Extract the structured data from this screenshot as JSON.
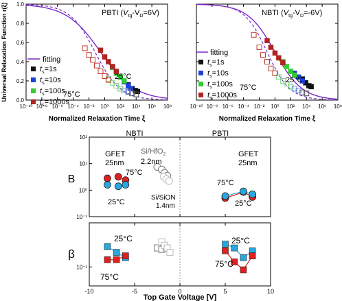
{
  "chart_data": [
    {
      "type": "scatter",
      "panel": "PBTI",
      "annotation_prefix": "PBTI (",
      "annotation_cond": "V",
      "annotation_sub1": "tg",
      "annotation_mid": "-V",
      "annotation_sub2": "D",
      "annotation_suffix": "=6V)",
      "xlabel": "Normalized Relaxation Time  ξ",
      "ylabel": "Universal Relaxation Function  r(ξ)",
      "xscale": "log",
      "xlim": [
        1e-10,
        100000000.0
      ],
      "ylim": [
        0.0,
        1.0
      ],
      "xticks": [
        "10⁻¹⁰",
        "10⁻⁸",
        "10⁻⁶",
        "10⁻⁴",
        "10⁻²",
        "10⁰",
        "10²",
        "10⁴",
        "10⁶",
        "10⁸"
      ],
      "yticks": [
        "0.0",
        "0.2",
        "0.4",
        "0.6",
        "0.8",
        "1.0"
      ],
      "temperature_labels": [
        "25°C",
        "75°C"
      ],
      "legend": {
        "placement": "center-left",
        "fitting_label": "fitting",
        "entries": [
          {
            "t": "t",
            "sub": "s",
            "rest": "=1s",
            "color": "#111111"
          },
          {
            "t": "t",
            "sub": "s",
            "rest": "=10s",
            "color": "#1f3fd9"
          },
          {
            "t": "t",
            "sub": "s",
            "rest": "=100s",
            "color": "#33cc33"
          },
          {
            "t": "t",
            "sub": "s",
            "rest": "=1000s",
            "color": "#b22222"
          }
        ]
      },
      "fit_solid": {
        "beta": 0.2,
        "xi_half": 0.3
      },
      "fit_dashed": {
        "beta": 0.27,
        "xi_half": 0.06
      },
      "series": [
        {
          "name": "25°C t=1s",
          "filled": true,
          "color": "#111111",
          "x": [
            1000,
            3000,
            8000,
            15000
          ],
          "y": [
            0.16,
            0.12,
            0.1,
            0.09
          ]
        },
        {
          "name": "25°C t=10s",
          "filled": true,
          "color": "#1f3fd9",
          "x": [
            100,
            300,
            1000,
            2000
          ],
          "y": [
            0.24,
            0.19,
            0.15,
            0.12
          ]
        },
        {
          "name": "25°C t=100s",
          "filled": true,
          "color": "#33cc33",
          "x": [
            10,
            30,
            100,
            300
          ],
          "y": [
            0.34,
            0.28,
            0.24,
            0.2
          ]
        },
        {
          "name": "25°C t=1000s",
          "filled": true,
          "color": "#b22222",
          "x": [
            0.3,
            1,
            3,
            10,
            30
          ],
          "y": [
            0.52,
            0.45,
            0.4,
            0.35,
            0.3
          ]
        },
        {
          "name": "75°C t=1s",
          "filled": false,
          "color": "#555555",
          "x": [
            1000,
            3000,
            10000
          ],
          "y": [
            0.09,
            0.07,
            0.06
          ]
        },
        {
          "name": "75°C t=10s",
          "filled": false,
          "color": "#6a8ae6",
          "x": [
            100,
            300,
            1000
          ],
          "y": [
            0.12,
            0.1,
            0.08
          ]
        },
        {
          "name": "75°C t=100s",
          "filled": false,
          "color": "#7bd97b",
          "x": [
            3,
            10,
            30,
            100
          ],
          "y": [
            0.22,
            0.18,
            0.15,
            0.12
          ]
        },
        {
          "name": "75°C t=1000s",
          "filled": false,
          "color": "#c0392b",
          "x": [
            0.003,
            0.01,
            0.03,
            0.1,
            0.3,
            1,
            3
          ],
          "y": [
            0.54,
            0.47,
            0.42,
            0.36,
            0.3,
            0.25,
            0.21
          ]
        }
      ]
    },
    {
      "type": "scatter",
      "panel": "NBTI",
      "annotation_prefix": "NBTI (",
      "annotation_cond": "V",
      "annotation_sub1": "tg",
      "annotation_mid": "-V",
      "annotation_sub2": "D",
      "annotation_suffix": "=-6V)",
      "xlabel": "Normalized Relaxation Time  ξ",
      "xscale": "log",
      "xlim": [
        1e-10,
        100000000.0
      ],
      "ylim": [
        0.0,
        1.0
      ],
      "xticks": [
        "10⁻¹⁰",
        "10⁻⁸",
        "10⁻⁶",
        "10⁻⁴",
        "10⁻²",
        "10⁰",
        "10²",
        "10⁴",
        "10⁶",
        "10⁸"
      ],
      "temperature_labels": [
        "25°C",
        "75°C"
      ],
      "legend": {
        "placement": "center-left",
        "fitting_label": "fitting",
        "entries": [
          {
            "t": "t",
            "sub": "s",
            "rest": "=1s",
            "color": "#111111"
          },
          {
            "t": "t",
            "sub": "s",
            "rest": "=10s",
            "color": "#1f3fd9"
          },
          {
            "t": "t",
            "sub": "s",
            "rest": "=100s",
            "color": "#33cc33"
          },
          {
            "t": "t",
            "sub": "s",
            "rest": "=1000s",
            "color": "#b22222"
          }
        ]
      },
      "fit_solid": {
        "beta": 0.25,
        "xi_half": 1.0
      },
      "fit_dashed": {
        "beta": 0.3,
        "xi_half": 0.1
      },
      "series": [
        {
          "name": "25°C t=1s",
          "filled": true,
          "color": "#111111",
          "x": [
            3000,
            8000,
            20000,
            40000
          ],
          "y": [
            0.22,
            0.18,
            0.15,
            0.14
          ]
        },
        {
          "name": "25°C t=10s",
          "filled": true,
          "color": "#1f3fd9",
          "x": [
            300,
            1000,
            3000
          ],
          "y": [
            0.28,
            0.24,
            0.2
          ]
        },
        {
          "name": "25°C t=100s",
          "filled": true,
          "color": "#33cc33",
          "x": [
            10,
            30,
            100,
            300
          ],
          "y": [
            0.4,
            0.35,
            0.3,
            0.26
          ]
        },
        {
          "name": "25°C t=1000s",
          "filled": true,
          "color": "#b22222",
          "x": [
            0.1,
            0.3,
            1,
            3,
            10
          ],
          "y": [
            0.62,
            0.55,
            0.49,
            0.44,
            0.39
          ]
        },
        {
          "name": "75°C t=1s",
          "filled": false,
          "color": "#555555",
          "x": [
            1000,
            3000,
            10000
          ],
          "y": [
            0.1,
            0.08,
            0.07
          ]
        },
        {
          "name": "75°C t=10s",
          "filled": false,
          "color": "#6a8ae6",
          "x": [
            100,
            300,
            1000
          ],
          "y": [
            0.14,
            0.12,
            0.1
          ]
        },
        {
          "name": "75°C t=100s",
          "filled": false,
          "color": "#7bd97b",
          "x": [
            3,
            10,
            30,
            100
          ],
          "y": [
            0.24,
            0.2,
            0.17,
            0.14
          ]
        },
        {
          "name": "75°C t=1000s",
          "filled": false,
          "color": "#c0392b",
          "x": [
            0.002,
            0.01,
            0.03,
            0.1,
            0.3,
            1
          ],
          "y": [
            0.68,
            0.55,
            0.47,
            0.4,
            0.33,
            0.28
          ]
        }
      ]
    },
    {
      "type": "scatter",
      "panel": "B vs top gate voltage",
      "ylabel": "B",
      "yscale": "log",
      "ylim": [
        0.1,
        100
      ],
      "yticks": [
        "10⁻¹",
        "10⁰",
        "10¹",
        "10²"
      ],
      "xlim": [
        -10,
        10
      ],
      "column_titles": [
        "NBTI",
        "PBTI"
      ],
      "labels": {
        "gfet_left": "GFET",
        "nm25_left": "25nm",
        "gfet_right": "GFET",
        "nm25_right": "25nm",
        "hfo2_prefix": "Si/HfO",
        "hfo2_sub": "2",
        "hfo2_thick": "2.2nm",
        "sion_1": "Si/SiON",
        "sion_2": "1.4nm",
        "t75_left": "75°C",
        "t25_left": "25°C",
        "t75_right": "75°C",
        "t25_right": "25°C"
      },
      "series": [
        {
          "name": "GFET NBTI 75°C",
          "color": "#e02020",
          "marker": "circle",
          "x": [
            -8,
            -6.8,
            -6
          ],
          "y": [
            2.8,
            3.2,
            2.4
          ],
          "line": false
        },
        {
          "name": "GFET NBTI 25°C",
          "color": "#29a8e0",
          "marker": "circle",
          "x": [
            -8,
            -6.8,
            -6
          ],
          "y": [
            1.6,
            1.4,
            1.6
          ],
          "line": false
        },
        {
          "name": "GFET PBTI 75°C",
          "color": "#e02020",
          "marker": "circle",
          "x": [
            5,
            7,
            8
          ],
          "y": [
            0.5,
            0.85,
            0.55
          ],
          "line": true
        },
        {
          "name": "GFET PBTI 25°C",
          "color": "#29a8e0",
          "marker": "circle",
          "x": [
            5,
            7,
            8
          ],
          "y": [
            0.6,
            0.9,
            0.7
          ],
          "line": true
        },
        {
          "name": "Si/HfO2 2.2nm",
          "color": "#777777",
          "marker": "circle-open",
          "x": [
            -2.5,
            -2,
            -1.7,
            -1.4
          ],
          "y": [
            7.5,
            6,
            4.5,
            3.5
          ],
          "line": false
        },
        {
          "name": "Si/SiON 1.4nm",
          "color": "#bcbcbc",
          "marker": "circle-open",
          "x": [
            -1.8,
            -1.5,
            -1.2
          ],
          "y": [
            3.2,
            2.6,
            2.2
          ],
          "line": false
        }
      ]
    },
    {
      "type": "scatter",
      "panel": "beta vs top gate voltage",
      "ylabel": "β",
      "yscale": "log",
      "ylim": [
        0.05,
        0.5
      ],
      "yticks": [
        "10⁻¹"
      ],
      "xlim": [
        -10,
        10
      ],
      "xticks": [
        "-10",
        "-5",
        "0",
        "5",
        "10"
      ],
      "xlabel": "Top Gate Voltage [V]",
      "labels": {
        "t25_left": "25°C",
        "t75_left": "75°C",
        "t25_right": "25°C",
        "t75_right": "75°C"
      },
      "series": [
        {
          "name": "GFET NBTI 25°C",
          "color": "#29a8e0",
          "marker": "square",
          "x": [
            -8,
            -7,
            -6
          ],
          "y": [
            0.21,
            0.17,
            0.14
          ],
          "line": true
        },
        {
          "name": "GFET NBTI 75°C",
          "color": "#e02020",
          "marker": "square",
          "x": [
            -8,
            -7,
            -6
          ],
          "y": [
            0.13,
            0.13,
            0.15
          ],
          "line": true
        },
        {
          "name": "GFET PBTI 25°C",
          "color": "#29a8e0",
          "marker": "square",
          "x": [
            5,
            6,
            7,
            8
          ],
          "y": [
            0.23,
            0.2,
            0.14,
            0.18
          ],
          "line": true
        },
        {
          "name": "GFET PBTI 75°C",
          "color": "#e02020",
          "marker": "square",
          "x": [
            5,
            6,
            7,
            8
          ],
          "y": [
            0.18,
            0.12,
            0.09,
            0.15
          ],
          "line": true
        },
        {
          "name": "Si/HfO2 2.2nm",
          "color": "#777777",
          "marker": "square-open",
          "x": [
            -2.5,
            -2,
            -1.5
          ],
          "y": [
            0.2,
            0.19,
            0.2
          ],
          "line": false
        },
        {
          "name": "Si/SiON 1.4nm",
          "color": "#bcbcbc",
          "marker": "square-open",
          "x": [
            -2,
            -1.7,
            -1.4,
            -1.1
          ],
          "y": [
            0.25,
            0.22,
            0.2,
            0.17
          ],
          "line": false
        }
      ]
    }
  ]
}
